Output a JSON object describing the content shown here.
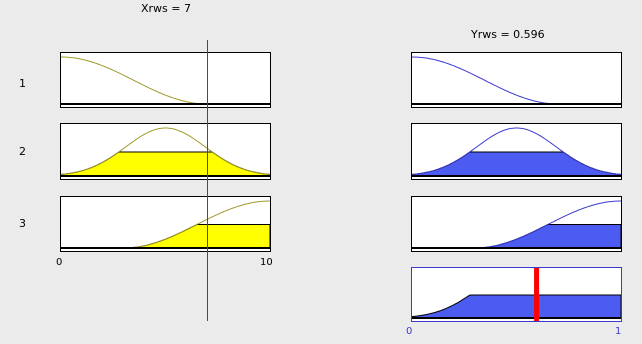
{
  "inputs": [
    {
      "name": "Xrws",
      "header": "Xrws = 7",
      "value": 7,
      "range": [
        0,
        10
      ],
      "ticks": [
        "0",
        "10"
      ],
      "fill_color": "#ffff00",
      "curve_color": "#a09a2a"
    }
  ],
  "output": {
    "name": "Yrws",
    "header": "Yrws = 0.596",
    "value": 0.596,
    "range": [
      0,
      1
    ],
    "ticks": [
      "0",
      "1"
    ],
    "fill_color": "#4d5cf0",
    "curve_color": "#3a3acf"
  },
  "rules": [
    {
      "label": "1",
      "input_fire": 0.0,
      "output_fire": 0.0
    },
    {
      "label": "2",
      "input_fire": 0.5,
      "output_fire": 0.5
    },
    {
      "label": "3",
      "input_fire": 0.5,
      "output_fire": 0.5
    }
  ],
  "colors": {
    "background": "#ebebeb",
    "index_line": "#ff0000",
    "defuzz_marker": "#ff0000"
  }
}
